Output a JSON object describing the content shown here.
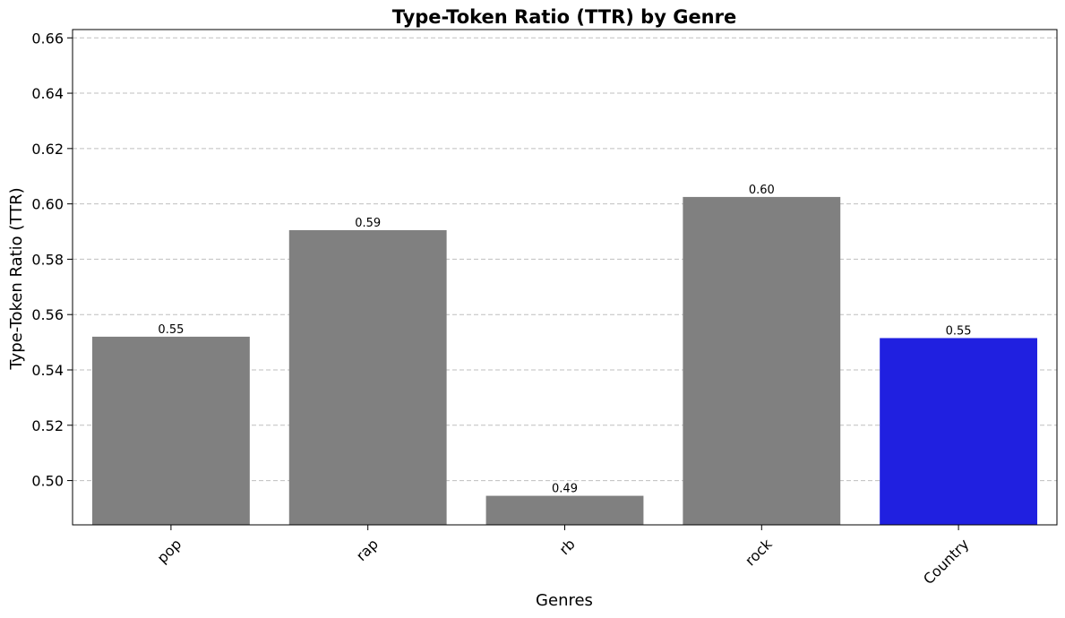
{
  "chart_data": {
    "type": "bar",
    "title": "Type-Token Ratio (TTR) by Genre",
    "xlabel": "Genres",
    "ylabel": "Type-Token Ratio (TTR)",
    "categories": [
      "pop",
      "rap",
      "rb",
      "rock",
      "Country"
    ],
    "values": [
      0.552,
      0.5905,
      0.4945,
      0.6025,
      0.5515
    ],
    "data_labels": [
      "0.55",
      "0.59",
      "0.49",
      "0.60",
      "0.55"
    ],
    "bar_colors": [
      "#808080",
      "#808080",
      "#808080",
      "#808080",
      "#2020e0"
    ],
    "ylim": [
      0.484,
      0.663
    ],
    "yticks": [
      0.5,
      0.52,
      0.54,
      0.56,
      0.58,
      0.6,
      0.62,
      0.64,
      0.66
    ],
    "ytick_labels": [
      "0.50",
      "0.52",
      "0.54",
      "0.56",
      "0.58",
      "0.60",
      "0.62",
      "0.64",
      "0.66"
    ],
    "grid": "y-axis dashed",
    "xtick_rotation": 45
  }
}
